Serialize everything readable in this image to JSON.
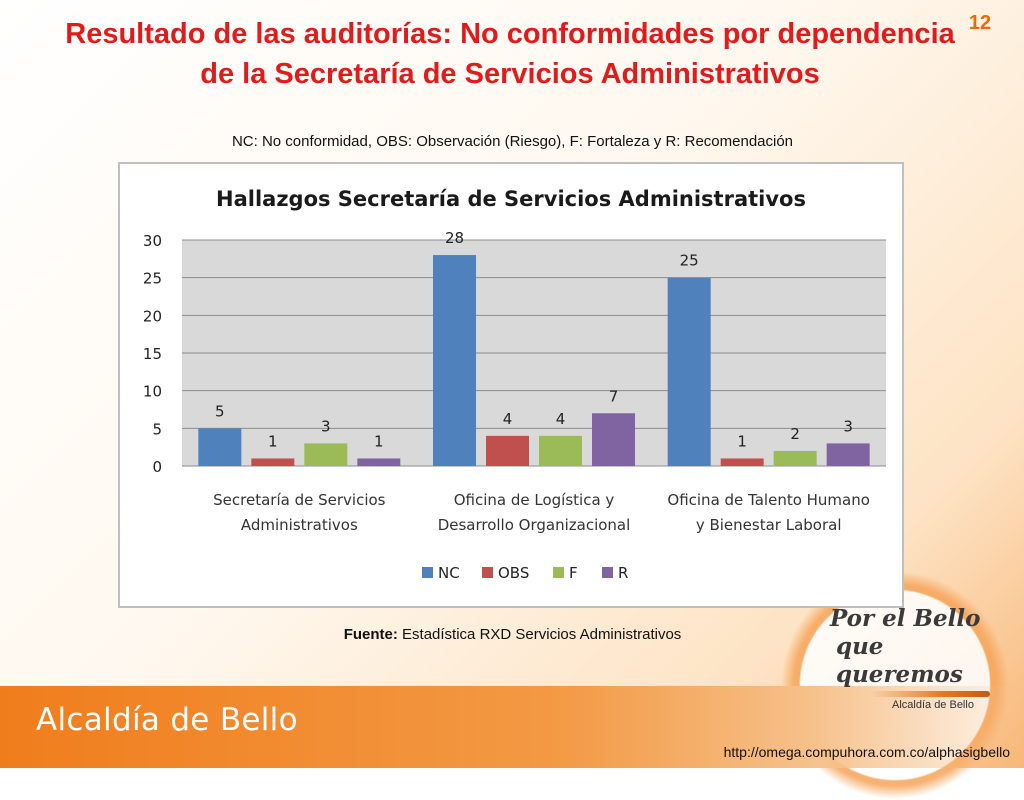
{
  "slide": {
    "title": "Resultado de las auditorías: No conformidades por dependencia de la Secretaría de Servicios Administrativos",
    "page_number": "12",
    "legend_note": "NC: No conformidad, OBS: Observación (Riesgo), F: Fortaleza y R: Recomendación",
    "source_label": "Fuente:",
    "source_text": "Estadística RXD Servicios Administrativos",
    "logo_line1": "Por el Bello",
    "logo_line2": "que queremos",
    "logo_sub": "Alcaldía de Bello",
    "brand": "Alcaldía de Bello",
    "url": "http://omega.compuhora.com.co/alphasigbello"
  },
  "colors": {
    "title": "#e11b1b",
    "NC": "#4f81bd",
    "OBS": "#c0504d",
    "F": "#9bbb59",
    "R": "#8064a2",
    "plot_bg": "#d9d9d9",
    "accent": "#f07d1c"
  },
  "chart_data": {
    "type": "bar",
    "title": "Hallazgos Secretaría de Servicios Administrativos",
    "categories": [
      [
        "Secretaría de Servicios",
        "Administrativos"
      ],
      [
        "Oficina de Logística y",
        "Desarrollo Organizacional"
      ],
      [
        "Oficina de Talento Humano",
        "y Bienestar Laboral"
      ]
    ],
    "series": [
      {
        "name": "NC",
        "values": [
          5,
          28,
          25
        ]
      },
      {
        "name": "OBS",
        "values": [
          1,
          4,
          1
        ]
      },
      {
        "name": "F",
        "values": [
          3,
          4,
          2
        ]
      },
      {
        "name": "R",
        "values": [
          1,
          7,
          3
        ]
      }
    ],
    "ylim": [
      0,
      30
    ],
    "yticks": [
      0,
      5,
      10,
      15,
      20,
      25,
      30
    ],
    "grid": true,
    "legend": "bottom",
    "data_labels": true
  }
}
